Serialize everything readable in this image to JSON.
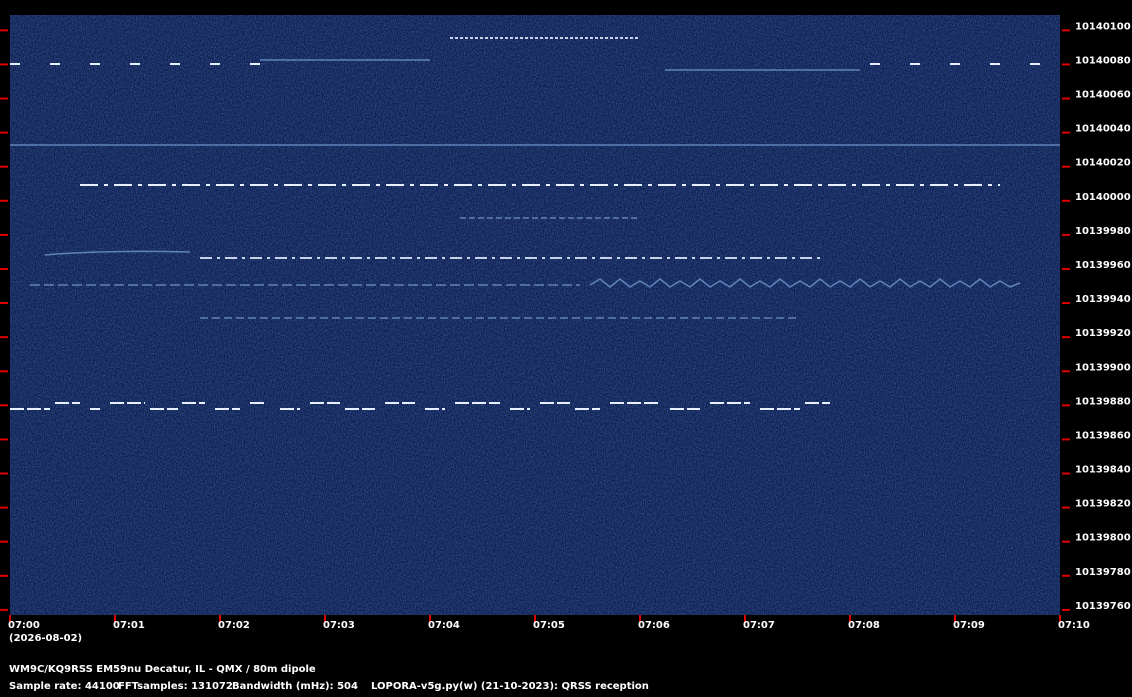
{
  "chart_data": {
    "type": "spectrogram",
    "categories": [
      "07:00",
      "07:01",
      "07:02",
      "07:03",
      "07:04",
      "07:05",
      "07:06",
      "07:07",
      "07:08",
      "07:09",
      "07:10"
    ],
    "date": "(2026-08-02)",
    "ylim": [
      10139757,
      10140109
    ],
    "yticks": [
      10140100,
      10140080,
      10140060,
      10140040,
      10140020,
      10140000,
      10139980,
      10139960,
      10139940,
      10139920,
      10139900,
      10139880,
      10139860,
      10139840,
      10139820,
      10139800,
      10139780,
      10139760
    ],
    "station": "WM9C/KQ9RSS EM59nu Decatur, IL - QMX / 80m dipole",
    "info": [
      "Sample rate: 44100",
      "FFTsamples: 131072",
      "Bandwidth (mHz): 504",
      "LOPORA-v5g.py(w) (21-10-2023): QRSS reception"
    ],
    "background_color": "#0b1d4f",
    "tick_color": "#e00000"
  }
}
